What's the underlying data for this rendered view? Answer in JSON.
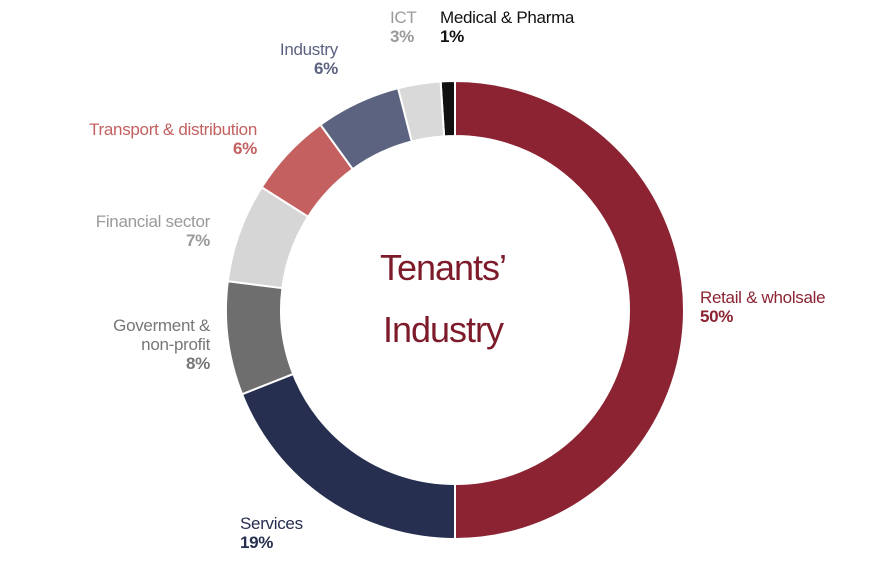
{
  "chart_data": {
    "type": "donut",
    "title": [
      "Tenants’",
      "Industry"
    ],
    "categories": [
      "Retail & wholsale",
      "Services",
      "Goverment & non-profit",
      "Financial sector",
      "Transport & distribution",
      "Industry",
      "ICT",
      "Medical & Pharma"
    ],
    "values": [
      50,
      19,
      8,
      7,
      6,
      6,
      3,
      1
    ],
    "value_labels": [
      "50%",
      "19%",
      "8%",
      "7%",
      "6%",
      "6%",
      "3%",
      "1%"
    ],
    "colors": [
      "#8b2332",
      "#262f4f",
      "#6e6e6e",
      "#d6d6d6",
      "#c4605f",
      "#5c6380",
      "#d9d9d9",
      "#111111"
    ],
    "label_colors": [
      "#8b2332",
      "#262f4f",
      "#777777",
      "#9a9a9a",
      "#c4605f",
      "#5c6380",
      "#9a9a9a",
      "#111111"
    ]
  }
}
